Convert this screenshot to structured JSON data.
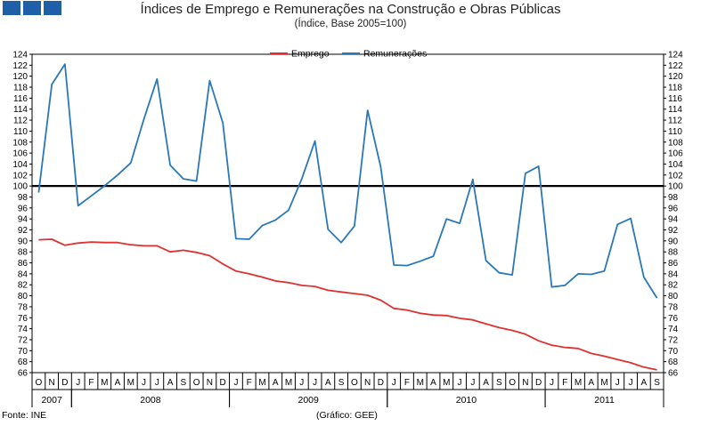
{
  "title": "Índices de Emprego e Remunerações na Construção e Obras Públicas",
  "subtitle": "(Índice, Base 2005=100)",
  "source": "Fonte: INE",
  "credit": "(Gráfico: GEE)",
  "chart_data": {
    "type": "line",
    "ylim": [
      66,
      124
    ],
    "ytick_step": 2,
    "reference_line": 100,
    "months": [
      "O",
      "N",
      "D",
      "J",
      "F",
      "M",
      "A",
      "M",
      "J",
      "J",
      "A",
      "S",
      "O",
      "N",
      "D",
      "J",
      "F",
      "M",
      "A",
      "M",
      "J",
      "J",
      "A",
      "S",
      "O",
      "N",
      "D",
      "J",
      "F",
      "M",
      "A",
      "M",
      "J",
      "J",
      "A",
      "S",
      "O",
      "N",
      "D",
      "J",
      "F",
      "M",
      "A",
      "M",
      "J",
      "J",
      "A",
      "S"
    ],
    "years": [
      {
        "label": "2007",
        "start": 0,
        "count": 3
      },
      {
        "label": "2008",
        "start": 3,
        "count": 12
      },
      {
        "label": "2009",
        "start": 15,
        "count": 12
      },
      {
        "label": "2010",
        "start": 27,
        "count": 12
      },
      {
        "label": "2011",
        "start": 39,
        "count": 9
      }
    ],
    "series": [
      {
        "name": "Emprego",
        "color": "#e03030",
        "values": [
          90.2,
          90.3,
          89.2,
          89.6,
          89.8,
          89.7,
          89.7,
          89.3,
          89.1,
          89.1,
          88.0,
          88.3,
          87.9,
          87.3,
          85.8,
          84.5,
          84.0,
          83.4,
          82.7,
          82.4,
          81.9,
          81.7,
          81.0,
          80.7,
          80.4,
          80.1,
          79.2,
          77.7,
          77.4,
          76.8,
          76.5,
          76.4,
          75.9,
          75.6,
          74.9,
          74.2,
          73.7,
          73.0,
          71.8,
          71.0,
          70.6,
          70.4,
          69.5,
          69.0,
          68.4,
          67.8,
          67.0,
          66.5
        ]
      },
      {
        "name": "Remunerações",
        "color": "#2a78b8",
        "values": [
          98.8,
          118.5,
          122.2,
          96.4,
          98.2,
          100.0,
          102.0,
          104.2,
          112.2,
          119.5,
          103.8,
          101.3,
          100.9,
          119.2,
          111.5,
          90.4,
          90.3,
          92.8,
          93.8,
          95.6,
          101.3,
          108.2,
          92.1,
          89.7,
          92.7,
          113.8,
          103.5,
          85.6,
          85.5,
          86.3,
          87.2,
          94.0,
          93.2,
          101.2,
          86.4,
          84.2,
          83.8,
          102.3,
          103.6,
          81.6,
          81.9,
          84.0,
          83.9,
          84.5,
          93.0,
          94.1,
          83.4,
          79.6
        ]
      }
    ]
  }
}
